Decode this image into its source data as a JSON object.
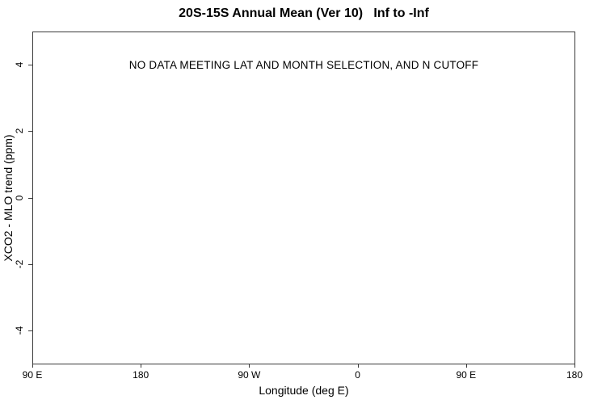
{
  "chart_data": {
    "type": "scatter",
    "title": "20S-15S Annual Mean (Ver 10)   Inf to -Inf",
    "xlabel": "Longitude (deg E)",
    "ylabel": "XCO2 - MLO trend (ppm)",
    "annotation": "NO DATA MEETING LAT AND MONTH SELECTION, AND N CUTOFF",
    "series": [],
    "grid": false,
    "legend": false,
    "xlim": [
      90,
      540
    ],
    "ylim": [
      -5,
      5
    ],
    "x_ticks": [
      {
        "value": 90,
        "label": "90 E"
      },
      {
        "value": 180,
        "label": "180"
      },
      {
        "value": 270,
        "label": "90 W"
      },
      {
        "value": 360,
        "label": "0"
      },
      {
        "value": 450,
        "label": "90 E"
      },
      {
        "value": 540,
        "label": "180"
      }
    ],
    "y_ticks": [
      {
        "value": 4,
        "label": "4"
      },
      {
        "value": 2,
        "label": "2"
      },
      {
        "value": 0,
        "label": "0"
      },
      {
        "value": -2,
        "label": "-2"
      },
      {
        "value": -4,
        "label": "-4"
      }
    ]
  }
}
